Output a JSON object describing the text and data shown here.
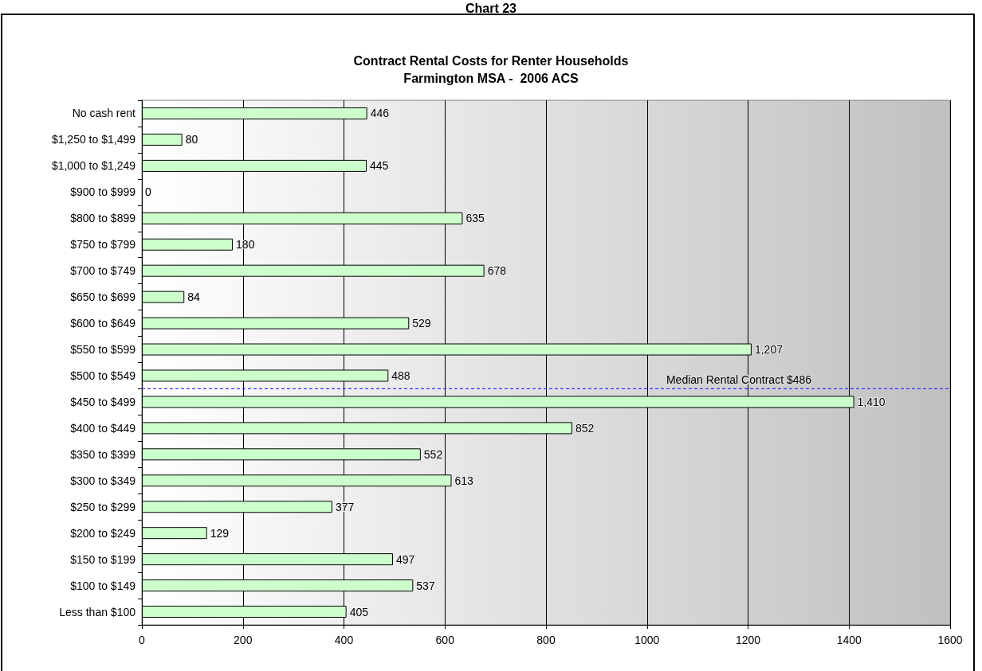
{
  "chart_data": {
    "type": "bar",
    "orientation": "horizontal",
    "title": "Contract Rental Costs for Renter Households\nFarmington MSA -  2006 ACS",
    "annotations": [
      "Chart 23"
    ],
    "categories": [
      "No cash rent",
      "$1,250 to $1,499",
      "$1,000 to $1,249",
      "$900 to $999",
      "$800 to $899",
      "$750 to $799",
      "$700 to $749",
      "$650 to $699",
      "$600 to $649",
      "$550 to $599",
      "$500 to $549",
      "$450 to $499",
      "$400 to $449",
      "$350 to $399",
      "$300 to $349",
      "$250 to $299",
      "$200 to $249",
      "$150 to $199",
      "$100 to $149",
      "Less than $100"
    ],
    "values": [
      446,
      80,
      445,
      0,
      635,
      180,
      678,
      84,
      529,
      1207,
      488,
      1410,
      852,
      552,
      613,
      377,
      129,
      497,
      537,
      405
    ],
    "value_labels": [
      "446",
      "80",
      "445",
      "0",
      "635",
      "180",
      "678",
      "84",
      "529",
      "1,207",
      "488",
      "1,410",
      "852",
      "552",
      "613",
      "377",
      "129",
      "497",
      "537",
      "405"
    ],
    "color": "#ccffcc",
    "xlim": [
      0,
      1600
    ],
    "xticks": [
      0,
      200,
      400,
      600,
      800,
      1000,
      1200,
      1400,
      1600
    ],
    "grid": "x",
    "ref_lines": [
      {
        "axis": "y",
        "value": "$450 to $499",
        "label": "Median Rental Contract $486",
        "color": "#3333ff",
        "line_style": "dashed"
      }
    ]
  }
}
